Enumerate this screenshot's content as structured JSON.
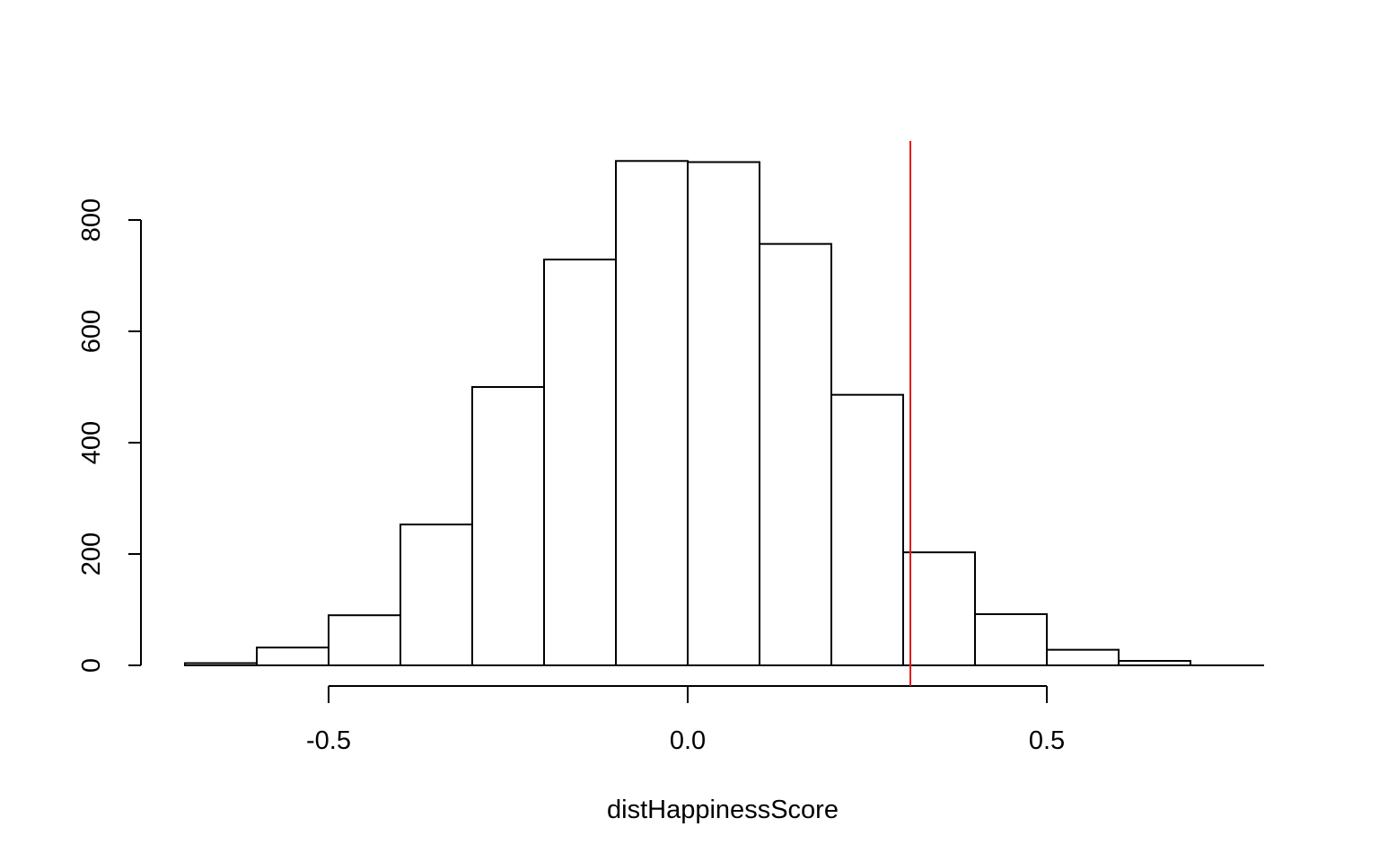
{
  "chart_data": {
    "type": "bar",
    "title": "",
    "xlabel": "distHappinessScore",
    "ylabel": "",
    "bins": [
      {
        "x0": -0.7,
        "x1": -0.6,
        "count": 4
      },
      {
        "x0": -0.6,
        "x1": -0.5,
        "count": 32
      },
      {
        "x0": -0.5,
        "x1": -0.4,
        "count": 90
      },
      {
        "x0": -0.4,
        "x1": -0.3,
        "count": 253
      },
      {
        "x0": -0.3,
        "x1": -0.2,
        "count": 500
      },
      {
        "x0": -0.2,
        "x1": -0.1,
        "count": 729
      },
      {
        "x0": -0.1,
        "x1": 0.0,
        "count": 906
      },
      {
        "x0": 0.0,
        "x1": 0.1,
        "count": 904
      },
      {
        "x0": 0.1,
        "x1": 0.2,
        "count": 757
      },
      {
        "x0": 0.2,
        "x1": 0.3,
        "count": 486
      },
      {
        "x0": 0.3,
        "x1": 0.4,
        "count": 203
      },
      {
        "x0": 0.4,
        "x1": 0.5,
        "count": 92
      },
      {
        "x0": 0.5,
        "x1": 0.6,
        "count": 28
      },
      {
        "x0": 0.6,
        "x1": 0.7,
        "count": 8
      }
    ],
    "reference_line": {
      "x": 0.31,
      "color": "#e41a1c"
    },
    "x_ticks": [
      {
        "value": -0.5,
        "label": "-0.5"
      },
      {
        "value": 0.0,
        "label": "0.0"
      },
      {
        "value": 0.5,
        "label": "0.5"
      }
    ],
    "y_ticks": [
      {
        "value": 0,
        "label": "0"
      },
      {
        "value": 200,
        "label": "200"
      },
      {
        "value": 400,
        "label": "400"
      },
      {
        "value": 600,
        "label": "600"
      },
      {
        "value": 800,
        "label": "800"
      }
    ],
    "xlim": [
      -0.7,
      0.8
    ],
    "ylim": [
      0,
      906
    ],
    "grid": false,
    "bar_fill": "#ffffff",
    "bar_stroke": "#000000"
  }
}
